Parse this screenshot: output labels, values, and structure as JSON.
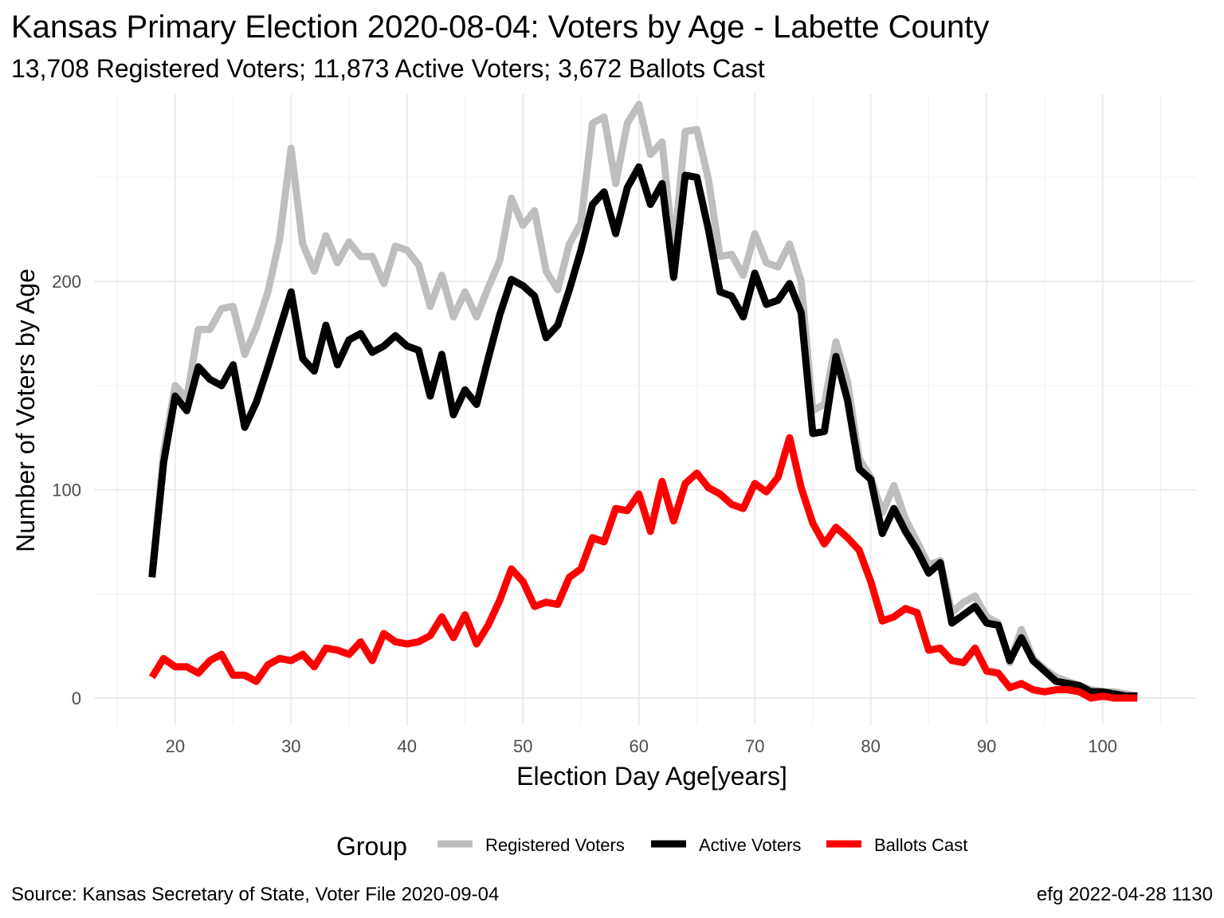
{
  "header": {
    "title": "Kansas Primary Election 2020-08-04:  Voters by Age - Labette County",
    "subtitle": "13,708 Registered Voters; 11,873 Active Voters; 3,672 Ballots Cast"
  },
  "footer": {
    "source": "Source:  Kansas Secretary of State, Voter File  2020-09-04",
    "credit": "efg 2022-04-28 1130"
  },
  "chart_data": {
    "type": "line",
    "xlabel": "Election Day Age[years]",
    "ylabel": "Number of Voters by Age",
    "xlim": [
      13,
      108
    ],
    "ylim": [
      -13,
      290
    ],
    "x_major_ticks": [
      20,
      30,
      40,
      50,
      60,
      70,
      80,
      90,
      100
    ],
    "x_tick_labels": [
      "20",
      "30",
      "40",
      "50",
      "60",
      "70",
      "80",
      "90",
      "100"
    ],
    "y_major_ticks": [
      0,
      100,
      200
    ],
    "y_tick_labels": [
      "0",
      "100",
      "200"
    ],
    "grid": true,
    "legend": {
      "title": "Group",
      "position": "bottom"
    },
    "x": [
      18,
      19,
      20,
      21,
      22,
      23,
      24,
      25,
      26,
      27,
      28,
      29,
      30,
      31,
      32,
      33,
      34,
      35,
      36,
      37,
      38,
      39,
      40,
      41,
      42,
      43,
      44,
      45,
      46,
      47,
      48,
      49,
      50,
      51,
      52,
      53,
      54,
      55,
      56,
      57,
      58,
      59,
      60,
      61,
      62,
      63,
      64,
      65,
      66,
      67,
      68,
      69,
      70,
      71,
      72,
      73,
      74,
      75,
      76,
      77,
      78,
      79,
      80,
      81,
      82,
      83,
      84,
      85,
      86,
      87,
      88,
      89,
      90,
      91,
      92,
      93,
      94,
      95,
      96,
      97,
      98,
      99,
      100,
      101,
      102,
      103
    ],
    "series": [
      {
        "name": "Registered Voters",
        "color": "#bebebe",
        "values": [
          60,
          118,
          150,
          144,
          177,
          177,
          187,
          188,
          165,
          178,
          195,
          220,
          264,
          218,
          205,
          222,
          209,
          219,
          212,
          212,
          199,
          217,
          215,
          208,
          188,
          203,
          183,
          195,
          183,
          197,
          210,
          240,
          227,
          234,
          205,
          196,
          218,
          228,
          276,
          279,
          247,
          276,
          285,
          261,
          267,
          214,
          272,
          273,
          249,
          212,
          213,
          203,
          223,
          209,
          207,
          218,
          200,
          138,
          141,
          171,
          152,
          115,
          106,
          89,
          102,
          86,
          75,
          64,
          66,
          41,
          46,
          49,
          39,
          36,
          17,
          33,
          19,
          14,
          10,
          8,
          6,
          4,
          3,
          3,
          2,
          1
        ]
      },
      {
        "name": "Active Voters",
        "color": "#000000",
        "values": [
          58,
          113,
          145,
          138,
          159,
          153,
          150,
          160,
          130,
          142,
          159,
          177,
          195,
          163,
          157,
          179,
          160,
          172,
          175,
          166,
          169,
          174,
          169,
          167,
          145,
          165,
          136,
          148,
          141,
          163,
          184,
          201,
          198,
          193,
          173,
          179,
          196,
          215,
          237,
          243,
          223,
          245,
          255,
          237,
          247,
          202,
          251,
          250,
          225,
          195,
          193,
          183,
          204,
          189,
          191,
          199,
          185,
          127,
          128,
          164,
          143,
          110,
          105,
          79,
          91,
          80,
          71,
          60,
          65,
          36,
          40,
          44,
          36,
          35,
          18,
          29,
          18,
          13,
          8,
          7,
          6,
          3,
          3,
          2,
          1,
          1
        ]
      },
      {
        "name": "Ballots Cast",
        "color": "#ff0000",
        "values": [
          10,
          19,
          15,
          15,
          12,
          18,
          21,
          11,
          11,
          8,
          16,
          19,
          18,
          21,
          15,
          24,
          23,
          21,
          27,
          18,
          31,
          27,
          26,
          27,
          30,
          39,
          29,
          40,
          26,
          35,
          47,
          62,
          56,
          44,
          46,
          45,
          58,
          62,
          77,
          75,
          91,
          90,
          98,
          80,
          104,
          85,
          103,
          108,
          101,
          98,
          93,
          91,
          103,
          99,
          106,
          125,
          101,
          84,
          74,
          82,
          77,
          71,
          56,
          37,
          39,
          43,
          41,
          23,
          24,
          18,
          17,
          24,
          13,
          12,
          5,
          7,
          4,
          3,
          4,
          4,
          3,
          0,
          1,
          0,
          0,
          0
        ]
      }
    ]
  }
}
